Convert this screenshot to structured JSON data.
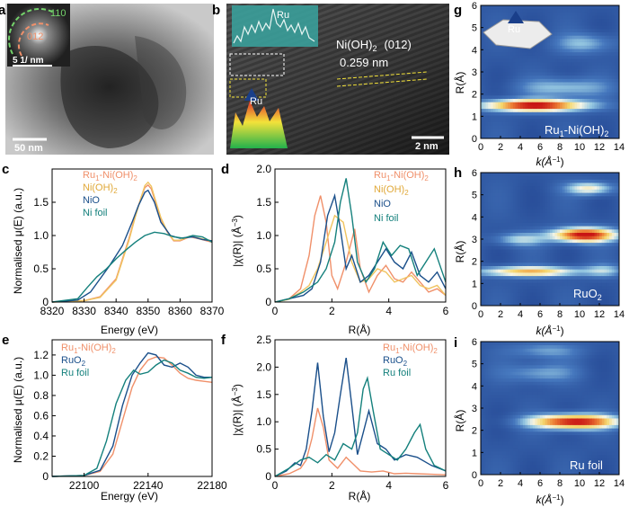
{
  "panels": {
    "a": {
      "letter": "a",
      "scale_bar": "50 nm",
      "inset_scale": "5 1/ nm",
      "ring1": "110",
      "ring2": "012"
    },
    "b": {
      "letter": "b",
      "scale_bar": "2 nm",
      "phase": "Ni(OH)",
      "phase_sub": "2",
      "plane": "(012)",
      "d_spacing": "0.259 nm",
      "inset_label": "Ru",
      "atom_label": "Ru"
    },
    "g": {
      "letter": "g",
      "sample": "Ru",
      "sample_sub": "1",
      "sample_rest": "-Ni(OH)",
      "sample_rest_sub": "2",
      "atom_label": "Ru"
    },
    "h": {
      "letter": "h",
      "sample": "RuO",
      "sample_sub": "2"
    },
    "i": {
      "letter": "i",
      "sample": "Ru foil"
    },
    "c": {
      "letter": "c"
    },
    "d": {
      "letter": "d"
    },
    "e": {
      "letter": "e"
    },
    "f": {
      "letter": "f"
    }
  },
  "colors": {
    "orange": "#f0906a",
    "yellow": "#f0c460",
    "blue": "#1a4f8a",
    "teal": "#14807c"
  },
  "axes": {
    "xanes_ylabel": "Normalised μ(E) (a.u.)",
    "energy_xlabel": "Energy (eV)",
    "r_xlabel": "R(Å)",
    "chi_ylabel_pre": "|χ(R)| (Å",
    "chi_ylabel_sup": "−3",
    "chi_ylabel_post": ")",
    "wt_ylabel": "R(Å)",
    "wt_xlabel_pre": "k(Å",
    "wt_xlabel_sup": "−1",
    "wt_xlabel_post": ")"
  },
  "legends": {
    "ni": [
      {
        "pre": "Ru",
        "sub1": "1",
        "mid": "-Ni(OH)",
        "sub2": "2"
      },
      {
        "pre": "Ni(OH)",
        "sub1": "2",
        "mid": "",
        "sub2": ""
      },
      {
        "pre": "NiO",
        "sub1": "",
        "mid": "",
        "sub2": ""
      },
      {
        "pre": "Ni foil",
        "sub1": "",
        "mid": "",
        "sub2": ""
      }
    ],
    "ru": [
      {
        "pre": "Ru",
        "sub1": "1",
        "mid": "-Ni(OH)",
        "sub2": "2"
      },
      {
        "pre": "RuO",
        "sub1": "2",
        "mid": "",
        "sub2": ""
      },
      {
        "pre": "Ru foil",
        "sub1": "",
        "mid": "",
        "sub2": ""
      }
    ]
  },
  "chart_data": [
    {
      "id": "c",
      "type": "line",
      "x_ticks": [
        "8320",
        "8330",
        "8340",
        "8350",
        "8360",
        "8370"
      ],
      "y_ticks": [
        "0",
        "0.5",
        "1.0",
        "1.5"
      ],
      "xlim": [
        8320,
        8370
      ],
      "ylim": [
        0,
        2.0
      ],
      "series": [
        {
          "name": "Ru1-Ni(OH)2",
          "color": "#f0906a",
          "x": [
            8320,
            8330,
            8335,
            8340,
            8344,
            8346,
            8348,
            8349,
            8350,
            8351,
            8352,
            8354,
            8356,
            8358,
            8360,
            8363,
            8366,
            8370
          ],
          "y": [
            0.0,
            0.02,
            0.08,
            0.35,
            0.95,
            1.3,
            1.6,
            1.72,
            1.76,
            1.7,
            1.55,
            1.25,
            1.05,
            0.92,
            0.92,
            0.98,
            0.95,
            0.9
          ]
        },
        {
          "name": "Ni(OH)2",
          "color": "#f0c460",
          "x": [
            8320,
            8330,
            8335,
            8340,
            8344,
            8346,
            8348,
            8349,
            8350,
            8351,
            8352,
            8354,
            8356,
            8358,
            8360,
            8363,
            8366,
            8370
          ],
          "y": [
            0.0,
            0.02,
            0.07,
            0.33,
            0.92,
            1.28,
            1.6,
            1.75,
            1.8,
            1.74,
            1.58,
            1.27,
            1.06,
            0.93,
            0.93,
            0.99,
            0.96,
            0.92
          ]
        },
        {
          "name": "NiO",
          "color": "#1a4f8a",
          "x": [
            8320,
            8328,
            8332,
            8335,
            8338,
            8342,
            8345,
            8347,
            8349,
            8350,
            8352,
            8354,
            8357,
            8360,
            8364,
            8367,
            8370
          ],
          "y": [
            0.0,
            0.03,
            0.15,
            0.35,
            0.55,
            0.85,
            1.2,
            1.45,
            1.65,
            1.68,
            1.5,
            1.2,
            1.0,
            0.96,
            0.98,
            0.94,
            0.92
          ]
        },
        {
          "name": "Ni foil",
          "color": "#14807c",
          "x": [
            8320,
            8328,
            8331,
            8334,
            8337,
            8340,
            8343,
            8346,
            8349,
            8352,
            8355,
            8358,
            8361,
            8364,
            8367,
            8370
          ],
          "y": [
            0.0,
            0.05,
            0.22,
            0.38,
            0.5,
            0.65,
            0.78,
            0.9,
            1.0,
            1.05,
            1.03,
            0.98,
            0.96,
            1.0,
            0.98,
            0.9
          ]
        }
      ]
    },
    {
      "id": "d",
      "type": "line",
      "x_ticks": [
        "0",
        "2",
        "4",
        "6"
      ],
      "y_ticks": [
        "0",
        "0.5",
        "1.0",
        "1.5",
        "2.0"
      ],
      "xlim": [
        0,
        6
      ],
      "ylim": [
        0,
        2.0
      ],
      "series": [
        {
          "name": "Ru1-Ni(OH)2",
          "color": "#f0906a",
          "x": [
            0,
            0.5,
            0.9,
            1.2,
            1.4,
            1.6,
            1.8,
            2.0,
            2.2,
            2.5,
            2.8,
            3.0,
            3.3,
            3.6,
            3.9,
            4.2,
            4.5,
            4.8,
            5.1,
            5.4,
            5.7,
            6.0
          ],
          "y": [
            0,
            0.05,
            0.2,
            0.7,
            1.3,
            1.6,
            1.2,
            0.4,
            0.2,
            0.6,
            1.1,
            0.5,
            0.15,
            0.4,
            0.55,
            0.35,
            0.3,
            0.45,
            0.3,
            0.15,
            0.2,
            0.1
          ]
        },
        {
          "name": "Ni(OH)2",
          "color": "#f0c460",
          "x": [
            0,
            0.5,
            0.9,
            1.2,
            1.5,
            1.8,
            2.1,
            2.4,
            2.7,
            3.0,
            3.3,
            3.6,
            3.9,
            4.2,
            4.5,
            4.8,
            5.1,
            5.4,
            5.7,
            6.0
          ],
          "y": [
            0,
            0.04,
            0.15,
            0.25,
            0.5,
            0.9,
            1.3,
            1.2,
            0.6,
            0.3,
            0.35,
            0.5,
            0.45,
            0.3,
            0.35,
            0.4,
            0.25,
            0.2,
            0.25,
            0.1
          ]
        },
        {
          "name": "NiO",
          "color": "#1a4f8a",
          "x": [
            0,
            0.5,
            1.0,
            1.3,
            1.6,
            1.85,
            2.1,
            2.3,
            2.5,
            2.7,
            3.0,
            3.3,
            3.6,
            3.9,
            4.2,
            4.5,
            4.8,
            5.1,
            5.4,
            5.7,
            6.0
          ],
          "y": [
            0,
            0.05,
            0.1,
            0.2,
            0.6,
            1.3,
            1.6,
            1.1,
            0.5,
            0.7,
            0.3,
            0.4,
            0.6,
            0.8,
            0.6,
            0.5,
            0.75,
            0.4,
            0.3,
            0.45,
            0.2
          ]
        },
        {
          "name": "Ni foil",
          "color": "#14807c",
          "x": [
            0,
            0.5,
            1.0,
            1.5,
            1.8,
            2.1,
            2.3,
            2.5,
            2.7,
            2.9,
            3.2,
            3.5,
            3.8,
            4.1,
            4.4,
            4.7,
            5.0,
            5.3,
            5.6,
            6.0
          ],
          "y": [
            0,
            0.05,
            0.15,
            0.3,
            0.5,
            0.9,
            1.5,
            1.86,
            1.3,
            0.6,
            0.3,
            0.5,
            0.9,
            0.7,
            0.85,
            0.8,
            0.4,
            0.6,
            0.8,
            0.3
          ]
        }
      ]
    },
    {
      "id": "e",
      "type": "line",
      "x_ticks": [
        "22100",
        "22140",
        "22180"
      ],
      "y_ticks": [
        "0",
        "0.2",
        "0.4",
        "0.6",
        "0.8",
        "1.0",
        "1.2"
      ],
      "xlim": [
        22080,
        22180
      ],
      "ylim": [
        0,
        1.35
      ],
      "series": [
        {
          "name": "Ru1-Ni(OH)2",
          "color": "#f0906a",
          "x": [
            22080,
            22100,
            22110,
            22118,
            22124,
            22130,
            22135,
            22140,
            22145,
            22150,
            22155,
            22160,
            22165,
            22170,
            22175,
            22180
          ],
          "y": [
            0.0,
            0.01,
            0.05,
            0.22,
            0.55,
            0.88,
            1.05,
            1.15,
            1.18,
            1.17,
            1.1,
            1.02,
            0.97,
            0.95,
            0.94,
            0.93
          ]
        },
        {
          "name": "RuO2",
          "color": "#1a4f8a",
          "x": [
            22080,
            22100,
            22110,
            22118,
            22124,
            22130,
            22135,
            22140,
            22145,
            22150,
            22155,
            22160,
            22165,
            22170,
            22175,
            22180
          ],
          "y": [
            0.0,
            0.01,
            0.06,
            0.3,
            0.7,
            1.0,
            1.12,
            1.22,
            1.2,
            1.1,
            1.08,
            1.12,
            1.08,
            1.0,
            0.98,
            0.98
          ]
        },
        {
          "name": "Ru foil",
          "color": "#14807c",
          "x": [
            22080,
            22100,
            22108,
            22114,
            22120,
            22126,
            22131,
            22135,
            22140,
            22145,
            22150,
            22155,
            22160,
            22165,
            22170,
            22175,
            22180
          ],
          "y": [
            0.0,
            0.01,
            0.08,
            0.35,
            0.72,
            0.95,
            1.05,
            1.01,
            1.03,
            1.1,
            1.15,
            1.12,
            1.05,
            1.02,
            0.98,
            0.97,
            0.98
          ]
        }
      ]
    },
    {
      "id": "f",
      "type": "line",
      "x_ticks": [
        "0",
        "2",
        "4",
        "6"
      ],
      "y_ticks": [
        "0",
        "0.5",
        "1.0",
        "1.5",
        "2.0",
        "2.5"
      ],
      "xlim": [
        0,
        6
      ],
      "ylim": [
        0,
        2.5
      ],
      "series": [
        {
          "name": "Ru1-Ni(OH)2",
          "color": "#f0906a",
          "x": [
            0,
            0.5,
            0.9,
            1.1,
            1.3,
            1.5,
            1.7,
            1.9,
            2.2,
            2.5,
            2.8,
            3.0,
            3.4,
            3.8,
            4.2,
            4.6,
            5.0,
            5.5,
            6.0
          ],
          "y": [
            0,
            0.05,
            0.15,
            0.3,
            0.7,
            1.25,
            0.9,
            0.3,
            0.15,
            0.35,
            0.2,
            0.1,
            0.08,
            0.1,
            0.05,
            0.06,
            0.05,
            0.04,
            0.03
          ]
        },
        {
          "name": "RuO2",
          "color": "#1a4f8a",
          "x": [
            0,
            0.4,
            0.7,
            0.9,
            1.1,
            1.3,
            1.5,
            1.7,
            1.9,
            2.1,
            2.3,
            2.5,
            2.7,
            2.9,
            3.1,
            3.3,
            3.6,
            3.9,
            4.2,
            4.6,
            5.0,
            5.5,
            6.0
          ],
          "y": [
            0,
            0.1,
            0.25,
            0.2,
            0.5,
            1.2,
            2.08,
            1.1,
            0.45,
            0.8,
            1.5,
            2.17,
            1.3,
            0.4,
            0.8,
            1.2,
            0.6,
            0.5,
            0.3,
            0.4,
            0.35,
            0.2,
            0.1
          ]
        },
        {
          "name": "Ru foil",
          "color": "#14807c",
          "x": [
            0,
            0.5,
            0.9,
            1.2,
            1.5,
            1.8,
            2.1,
            2.4,
            2.7,
            2.9,
            3.1,
            3.25,
            3.45,
            3.7,
            4.0,
            4.3,
            4.6,
            4.9,
            5.1,
            5.3,
            5.6,
            6.0
          ],
          "y": [
            0,
            0.15,
            0.3,
            0.35,
            0.25,
            0.4,
            0.3,
            0.6,
            0.5,
            0.8,
            1.6,
            1.8,
            1.2,
            0.5,
            0.4,
            0.3,
            0.5,
            0.8,
            0.95,
            0.5,
            0.2,
            0.1
          ]
        }
      ]
    },
    {
      "id": "g",
      "type": "heatmap",
      "x_ticks": [
        "0",
        "2",
        "4",
        "6",
        "8",
        "10",
        "12",
        "14"
      ],
      "y_ticks": [
        "0",
        "1",
        "2",
        "3",
        "4",
        "5",
        "6"
      ],
      "xlim": [
        0,
        14
      ],
      "ylim": [
        0,
        6
      ],
      "blobs": [
        {
          "k": 5.5,
          "r": 1.5,
          "intensity": 1.0,
          "sk": 3.5,
          "sr": 0.18
        },
        {
          "k": 8.5,
          "r": 2.3,
          "intensity": 0.28,
          "sk": 3.0,
          "sr": 0.3
        },
        {
          "k": 10.5,
          "r": 4.3,
          "intensity": 0.25,
          "sk": 2.0,
          "sr": 0.3
        }
      ]
    },
    {
      "id": "h",
      "type": "heatmap",
      "x_ticks": [
        "0",
        "2",
        "4",
        "6",
        "8",
        "10",
        "12",
        "14"
      ],
      "y_ticks": [
        "0",
        "1",
        "2",
        "3",
        "4",
        "5",
        "6"
      ],
      "xlim": [
        0,
        14
      ],
      "ylim": [
        0,
        6
      ],
      "blobs": [
        {
          "k": 10.5,
          "r": 3.2,
          "intensity": 1.0,
          "sk": 2.2,
          "sr": 0.22
        },
        {
          "k": 5.0,
          "r": 1.55,
          "intensity": 0.62,
          "sk": 3.5,
          "sr": 0.16
        },
        {
          "k": 11.0,
          "r": 5.3,
          "intensity": 0.45,
          "sk": 1.6,
          "sr": 0.2
        },
        {
          "k": 4.0,
          "r": 3.0,
          "intensity": 0.3,
          "sk": 1.8,
          "sr": 0.2
        },
        {
          "k": 12.5,
          "r": 1.6,
          "intensity": 0.25,
          "sk": 1.3,
          "sr": 0.2
        }
      ]
    },
    {
      "id": "i",
      "type": "heatmap",
      "x_ticks": [
        "0",
        "2",
        "4",
        "6",
        "8",
        "10",
        "12",
        "14"
      ],
      "y_ticks": [
        "0",
        "1",
        "2",
        "3",
        "4",
        "5",
        "6"
      ],
      "xlim": [
        0,
        14
      ],
      "ylim": [
        0,
        6
      ],
      "blobs": [
        {
          "k": 9.5,
          "r": 2.4,
          "intensity": 1.0,
          "sk": 3.0,
          "sr": 0.22
        },
        {
          "k": 6.0,
          "r": 4.6,
          "intensity": 0.22,
          "sk": 2.5,
          "sr": 0.3
        },
        {
          "k": 6.5,
          "r": 5.6,
          "intensity": 0.2,
          "sk": 2.5,
          "sr": 0.25
        }
      ]
    }
  ]
}
